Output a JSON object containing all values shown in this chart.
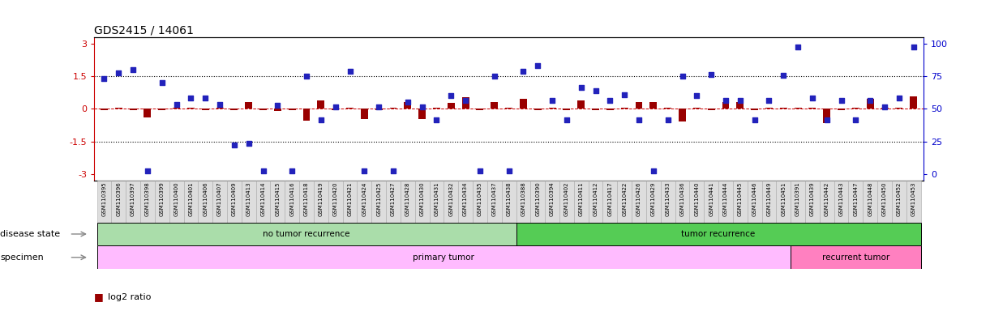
{
  "title": "GDS2415 / 14061",
  "samples": [
    "GSM110395",
    "GSM110396",
    "GSM110397",
    "GSM110398",
    "GSM110399",
    "GSM110400",
    "GSM110401",
    "GSM110406",
    "GSM110407",
    "GSM110409",
    "GSM110413",
    "GSM110414",
    "GSM110415",
    "GSM110416",
    "GSM110418",
    "GSM110419",
    "GSM110420",
    "GSM110421",
    "GSM110424",
    "GSM110425",
    "GSM110427",
    "GSM110428",
    "GSM110430",
    "GSM110431",
    "GSM110432",
    "GSM110434",
    "GSM110435",
    "GSM110437",
    "GSM110438",
    "GSM110388",
    "GSM110390",
    "GSM110394",
    "GSM110402",
    "GSM110411",
    "GSM110412",
    "GSM110417",
    "GSM110422",
    "GSM110426",
    "GSM110429",
    "GSM110433",
    "GSM110436",
    "GSM110440",
    "GSM110441",
    "GSM110444",
    "GSM110445",
    "GSM110446",
    "GSM110449",
    "GSM110451",
    "GSM110391",
    "GSM110439",
    "GSM110442",
    "GSM110443",
    "GSM110447",
    "GSM110448",
    "GSM110450",
    "GSM110452",
    "GSM110453"
  ],
  "log2_ratio": [
    -0.05,
    0.06,
    -0.05,
    -0.38,
    -0.05,
    0.05,
    0.05,
    -0.05,
    0.05,
    -0.05,
    0.32,
    -0.05,
    -0.1,
    -0.05,
    -0.55,
    0.38,
    -0.05,
    0.05,
    -0.48,
    -0.05,
    0.05,
    0.32,
    -0.48,
    0.05,
    0.28,
    0.52,
    -0.05,
    0.33,
    0.05,
    0.48,
    -0.05,
    0.05,
    -0.05,
    0.38,
    -0.05,
    -0.05,
    0.05,
    0.32,
    0.32,
    0.05,
    -0.58,
    0.05,
    -0.05,
    0.32,
    0.32,
    -0.05,
    0.05,
    0.05,
    0.05,
    0.05,
    -0.65,
    -0.05,
    0.05,
    0.48,
    0.05,
    0.05,
    0.58
  ],
  "percentile_scaled": [
    1.4,
    1.65,
    1.8,
    -2.85,
    1.2,
    0.2,
    0.5,
    0.5,
    0.2,
    -1.65,
    -1.6,
    -2.85,
    0.15,
    -2.85,
    1.5,
    -0.5,
    0.1,
    1.75,
    -2.85,
    0.1,
    -2.85,
    0.3,
    0.1,
    -0.5,
    0.6,
    0.4,
    -2.85,
    1.5,
    -2.85,
    1.75,
    2.0,
    0.4,
    -0.5,
    1.0,
    0.85,
    0.4,
    0.65,
    -0.5,
    -2.85,
    -0.5,
    1.5,
    0.6,
    1.6,
    0.4,
    0.4,
    -0.5,
    0.4,
    1.55,
    2.85,
    0.5,
    -0.5,
    0.4,
    -0.5,
    0.4,
    0.1,
    0.5,
    2.85
  ],
  "no_recurrence_count": 29,
  "recurrence_count": 28,
  "primary_tumor_count": 48,
  "recurrent_tumor_count": 9,
  "disease_state_labels": [
    "no tumor recurrence",
    "tumor recurrence"
  ],
  "specimen_labels": [
    "primary tumor",
    "recurrent tumor"
  ],
  "green_light": "#aaddaa",
  "green_dark": "#55cc55",
  "pink_light": "#ffbbff",
  "pink_dark": "#ff80c0",
  "bar_color": "#990000",
  "dot_color": "#2222bb",
  "left_axis_color": "#cc0000",
  "right_axis_color": "#0000cc",
  "zero_line_color": "#cc0000",
  "yticks_left": [
    -3,
    -1.5,
    0,
    1.5,
    3
  ],
  "yticks_right_vals": [
    0,
    25,
    50,
    75,
    100
  ],
  "ylim": [
    -3.3,
    3.3
  ],
  "dotted_lines": [
    -1.5,
    1.5
  ],
  "tick_label_bg": "#dddddd",
  "figsize": [
    12.21,
    3.84
  ],
  "dpi": 100
}
